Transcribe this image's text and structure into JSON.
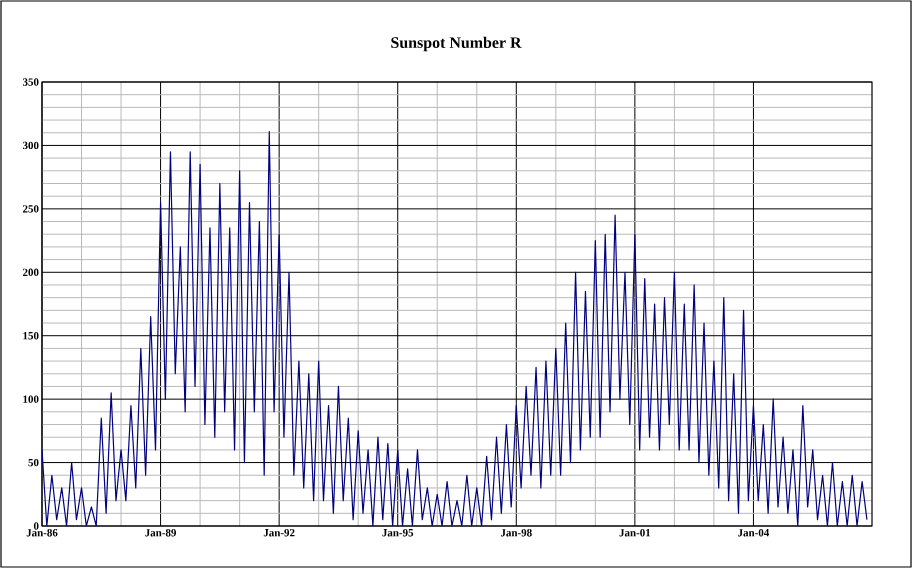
{
  "chart_data": {
    "type": "line",
    "title": "Sunspot Number R",
    "xlim": [
      "1986-01",
      "2007-01"
    ],
    "xticks": [
      {
        "value": "1986-01",
        "label": "Jan-86"
      },
      {
        "value": "1989-01",
        "label": "Jan-89"
      },
      {
        "value": "1992-01",
        "label": "Jan-92"
      },
      {
        "value": "1995-01",
        "label": "Jan-95"
      },
      {
        "value": "1998-01",
        "label": "Jan-98"
      },
      {
        "value": "2001-01",
        "label": "Jan-01"
      },
      {
        "value": "2004-01",
        "label": "Jan-04"
      }
    ],
    "ylim": [
      0,
      350
    ],
    "yticks": [
      0,
      50,
      100,
      150,
      200,
      250,
      300,
      350
    ],
    "grid": true,
    "marker": "none",
    "line_style": "solid",
    "series": [
      {
        "color": "#000080",
        "x": [
          "1986-01-01",
          "1986-02-15",
          "1986-04-01",
          "1986-05-15",
          "1986-07-01",
          "1986-08-15",
          "1986-10-01",
          "1986-11-15",
          "1987-01-01",
          "1987-02-15",
          "1987-04-01",
          "1987-05-15",
          "1987-07-01",
          "1987-08-15",
          "1987-10-01",
          "1987-11-15",
          "1988-01-01",
          "1988-02-15",
          "1988-04-01",
          "1988-05-15",
          "1988-07-01",
          "1988-08-15",
          "1988-10-01",
          "1988-11-15",
          "1989-01-01",
          "1989-02-15",
          "1989-04-01",
          "1989-05-15",
          "1989-07-01",
          "1989-08-15",
          "1989-10-01",
          "1989-11-15",
          "1990-01-01",
          "1990-02-15",
          "1990-04-01",
          "1990-05-15",
          "1990-07-01",
          "1990-08-15",
          "1990-10-01",
          "1990-11-15",
          "1991-01-01",
          "1991-02-15",
          "1991-04-01",
          "1991-05-15",
          "1991-07-01",
          "1991-08-15",
          "1991-10-01",
          "1991-11-15",
          "1992-01-01",
          "1992-02-15",
          "1992-04-01",
          "1992-05-15",
          "1992-07-01",
          "1992-08-15",
          "1992-10-01",
          "1992-11-15",
          "1993-01-01",
          "1993-02-15",
          "1993-04-01",
          "1993-05-15",
          "1993-07-01",
          "1993-08-15",
          "1993-10-01",
          "1993-11-15",
          "1994-01-01",
          "1994-02-15",
          "1994-04-01",
          "1994-05-15",
          "1994-07-01",
          "1994-08-15",
          "1994-10-01",
          "1994-11-15",
          "1995-01-01",
          "1995-02-15",
          "1995-04-01",
          "1995-05-15",
          "1995-07-01",
          "1995-08-15",
          "1995-10-01",
          "1995-11-15",
          "1996-01-01",
          "1996-02-15",
          "1996-04-01",
          "1996-05-15",
          "1996-07-01",
          "1996-08-15",
          "1996-10-01",
          "1996-11-15",
          "1997-01-01",
          "1997-02-15",
          "1997-04-01",
          "1997-05-15",
          "1997-07-01",
          "1997-08-15",
          "1997-10-01",
          "1997-11-15",
          "1998-01-01",
          "1998-02-15",
          "1998-04-01",
          "1998-05-15",
          "1998-07-01",
          "1998-08-15",
          "1998-10-01",
          "1998-11-15",
          "1999-01-01",
          "1999-02-15",
          "1999-04-01",
          "1999-05-15",
          "1999-07-01",
          "1999-08-15",
          "1999-10-01",
          "1999-11-15",
          "2000-01-01",
          "2000-02-15",
          "2000-04-01",
          "2000-05-15",
          "2000-07-01",
          "2000-08-15",
          "2000-10-01",
          "2000-11-15",
          "2001-01-01",
          "2001-02-15",
          "2001-04-01",
          "2001-05-15",
          "2001-07-01",
          "2001-08-15",
          "2001-10-01",
          "2001-11-15",
          "2002-01-01",
          "2002-02-15",
          "2002-04-01",
          "2002-05-15",
          "2002-07-01",
          "2002-08-15",
          "2002-10-01",
          "2002-11-15",
          "2003-01-01",
          "2003-02-15",
          "2003-04-01",
          "2003-05-15",
          "2003-07-01",
          "2003-08-15",
          "2003-10-01",
          "2003-11-15",
          "2004-01-01",
          "2004-02-15",
          "2004-04-01",
          "2004-05-15",
          "2004-07-01",
          "2004-08-15",
          "2004-10-01",
          "2004-11-15",
          "2005-01-01",
          "2005-02-15",
          "2005-04-01",
          "2005-05-15",
          "2005-07-01",
          "2005-08-15",
          "2005-10-01",
          "2005-11-15",
          "2006-01-01",
          "2006-02-15",
          "2006-04-01",
          "2006-05-15",
          "2006-07-01",
          "2006-08-15",
          "2006-10-01",
          "2006-11-15"
        ],
        "values": [
          60,
          0,
          40,
          5,
          30,
          0,
          50,
          5,
          30,
          0,
          15,
          0,
          85,
          10,
          105,
          20,
          60,
          20,
          95,
          30,
          140,
          40,
          165,
          60,
          255,
          100,
          295,
          120,
          220,
          90,
          295,
          110,
          285,
          80,
          235,
          70,
          270,
          90,
          235,
          60,
          280,
          50,
          255,
          90,
          240,
          40,
          311,
          90,
          230,
          70,
          200,
          40,
          130,
          30,
          120,
          20,
          130,
          20,
          95,
          10,
          110,
          20,
          85,
          5,
          75,
          10,
          60,
          0,
          70,
          5,
          65,
          0,
          60,
          0,
          45,
          0,
          60,
          5,
          30,
          0,
          25,
          0,
          35,
          0,
          20,
          0,
          40,
          0,
          30,
          0,
          55,
          5,
          70,
          10,
          80,
          15,
          95,
          30,
          110,
          40,
          125,
          30,
          130,
          40,
          140,
          40,
          160,
          50,
          200,
          60,
          185,
          70,
          225,
          70,
          230,
          90,
          245,
          100,
          200,
          80,
          230,
          60,
          195,
          70,
          175,
          60,
          180,
          80,
          200,
          60,
          175,
          60,
          190,
          50,
          160,
          40,
          130,
          30,
          180,
          20,
          120,
          10,
          170,
          20,
          95,
          20,
          80,
          10,
          100,
          15,
          70,
          10,
          60,
          0,
          95,
          15,
          60,
          5,
          40,
          0,
          50,
          0,
          35,
          0,
          40,
          0,
          35,
          5
        ]
      }
    ]
  }
}
